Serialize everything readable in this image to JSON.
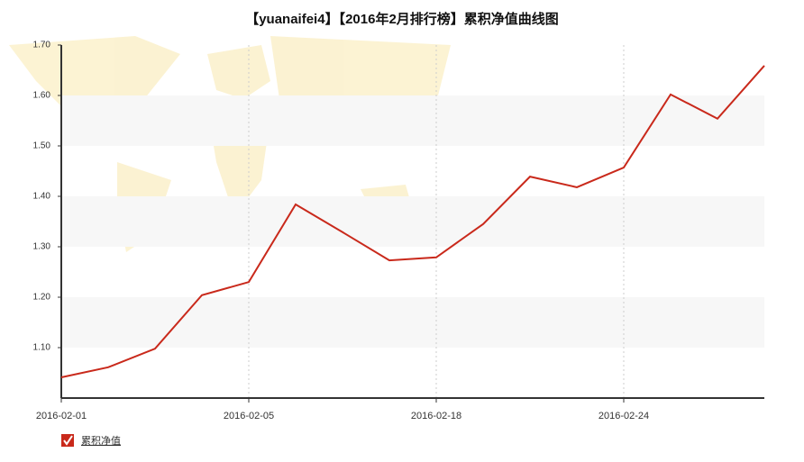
{
  "chart_data": {
    "type": "line",
    "title": "【yuanaifei4】【2016年2月排行榜】累积净值曲线图",
    "categories": [
      "2016-02-01",
      null,
      null,
      null,
      "2016-02-05",
      null,
      null,
      null,
      "2016-02-18",
      null,
      null,
      null,
      "2016-02-24",
      null,
      null,
      null
    ],
    "series": [
      {
        "name": "累积净值",
        "color": "#c9291b",
        "values": [
          1.041,
          1.061,
          1.098,
          1.204,
          1.23,
          1.384,
          1.329,
          1.273,
          1.279,
          1.345,
          1.439,
          1.418,
          1.457,
          1.602,
          1.554,
          1.659
        ]
      }
    ],
    "ylim": [
      1.0,
      1.7
    ],
    "yticks": [
      {
        "value": 1.1,
        "label": "1.10"
      },
      {
        "value": 1.2,
        "label": "1.20"
      },
      {
        "value": 1.3,
        "label": "1.30"
      },
      {
        "value": 1.4,
        "label": "1.40"
      },
      {
        "value": 1.5,
        "label": "1.50"
      },
      {
        "value": 1.6,
        "label": "1.60"
      },
      {
        "value": 1.7,
        "label": "1.70"
      }
    ],
    "grid": true
  }
}
